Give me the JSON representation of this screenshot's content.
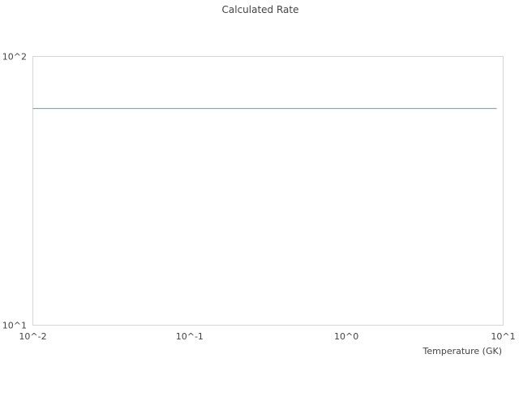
{
  "chart_data": {
    "type": "line",
    "title": "Calculated Rate",
    "xlabel": "Temperature (GK)",
    "ylabel": "",
    "x_scale": "log",
    "y_scale": "log",
    "xlim": [
      0.01,
      10
    ],
    "ylim": [
      10,
      100
    ],
    "x_ticks": [
      0.01,
      0.1,
      1,
      10
    ],
    "x_tick_labels": [
      "10^-2",
      "10^-1",
      "10^0",
      "10^1"
    ],
    "y_ticks": [
      10,
      100
    ],
    "y_tick_labels": [
      "10^1",
      "10^2"
    ],
    "grid": false,
    "legend": "none",
    "series": [
      {
        "color": "#5b9bd5",
        "x": [
          0.01,
          9.1
        ],
        "y": [
          64,
          64
        ]
      }
    ]
  }
}
